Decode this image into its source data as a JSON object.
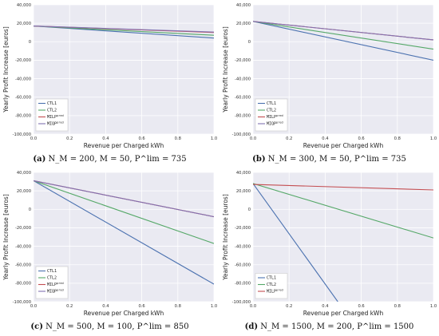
{
  "colors": {
    "plot_bg": "#eaeaf2",
    "grid": "#ffffff",
    "CTL1": "#4c72b0",
    "CTL2": "#55a868",
    "MILP": "#c44e52",
    "MIQP": "#8172b2"
  },
  "chart_data": [
    {
      "type": "line",
      "xlabel": "Revenue per Charged kWh",
      "ylabel": "Yearly Profit Increase [euros]",
      "xlim": [
        0.0,
        1.0
      ],
      "ylim": [
        -100000,
        40000
      ],
      "xticks": [
        "0.0",
        "0.2",
        "0.4",
        "0.6",
        "0.8",
        "1.0"
      ],
      "yticks": [
        "-100,000",
        "-80,000",
        "-60,000",
        "-40,000",
        "-20,000",
        "0",
        "20,000",
        "40,000"
      ],
      "grid": true,
      "legend_position": "lower-left",
      "caption": {
        "tag": "(a)",
        "text": "N_M = 200, M = 50, P^lim = 735"
      },
      "series": [
        {
          "name": "CTL1",
          "x": [
            0,
            1
          ],
          "y": [
            17000,
            4000
          ]
        },
        {
          "name": "CTL2",
          "x": [
            0,
            1
          ],
          "y": [
            17000,
            7000
          ]
        },
        {
          "name": "MILP^pred",
          "x": [
            0,
            1
          ],
          "y": [
            17000,
            10000
          ]
        },
        {
          "name": "MIQP^pred",
          "x": [
            0,
            1
          ],
          "y": [
            17000,
            10500
          ]
        }
      ]
    },
    {
      "type": "line",
      "xlabel": "Revenue per Charged kWh",
      "ylabel": "Yearly Profit Increase [euros]",
      "xlim": [
        0.0,
        1.0
      ],
      "ylim": [
        -100000,
        40000
      ],
      "xticks": [
        "0.0",
        "0.2",
        "0.4",
        "0.6",
        "0.8",
        "1.0"
      ],
      "yticks": [
        "-100,000",
        "-80,000",
        "-60,000",
        "-40,000",
        "-20,000",
        "0",
        "20,000",
        "40,000"
      ],
      "grid": true,
      "legend_position": "lower-left",
      "caption": {
        "tag": "(b)",
        "text": "N_M = 300, M = 50, P^lim = 735"
      },
      "series": [
        {
          "name": "CTL1",
          "x": [
            0,
            1
          ],
          "y": [
            22000,
            -20000
          ]
        },
        {
          "name": "CTL2",
          "x": [
            0,
            1
          ],
          "y": [
            22000,
            -8000
          ]
        },
        {
          "name": "MILP^pred",
          "x": [
            0,
            1
          ],
          "y": [
            22000,
            2000
          ]
        },
        {
          "name": "MIQP^pred",
          "x": [
            0,
            1
          ],
          "y": [
            22000,
            2000
          ]
        }
      ]
    },
    {
      "type": "line",
      "xlabel": "Revenue per Charged kWh",
      "ylabel": "Yearly Profit Increase [euros]",
      "xlim": [
        0.0,
        1.0
      ],
      "ylim": [
        -100000,
        40000
      ],
      "xticks": [
        "0.0",
        "0.2",
        "0.4",
        "0.6",
        "0.8",
        "1.0"
      ],
      "yticks": [
        "-100,000",
        "-80,000",
        "-60,000",
        "-40,000",
        "-20,000",
        "0",
        "20,000",
        "40,000"
      ],
      "grid": true,
      "legend_position": "lower-left",
      "caption": {
        "tag": "(c)",
        "text": "N_M = 500, M = 100, P^lim = 850"
      },
      "series": [
        {
          "name": "CTL1",
          "x": [
            0,
            1
          ],
          "y": [
            31000,
            -81000
          ]
        },
        {
          "name": "CTL2",
          "x": [
            0,
            1
          ],
          "y": [
            31000,
            -37000
          ]
        },
        {
          "name": "MILP^pred",
          "x": [
            0,
            1
          ],
          "y": [
            31000,
            -8000
          ]
        },
        {
          "name": "MIQP^pred",
          "x": [
            0,
            1
          ],
          "y": [
            31000,
            -8000
          ]
        }
      ]
    },
    {
      "type": "line",
      "xlabel": "Revenue per Charged kWh",
      "ylabel": "Yearly Profit Increase [euros]",
      "xlim": [
        0.0,
        1.0
      ],
      "ylim": [
        -100000,
        40000
      ],
      "xticks": [
        "0.0",
        "0.2",
        "0.4",
        "0.6",
        "0.8",
        "1.0"
      ],
      "yticks": [
        "-100,000",
        "-80,000",
        "-60,000",
        "-40,000",
        "-20,000",
        "0",
        "20,000",
        "40,000"
      ],
      "grid": true,
      "legend_position": "lower-left",
      "caption": {
        "tag": "(d)",
        "text": "N_M = 1500, M = 200, P^lim = 1500"
      },
      "series": [
        {
          "name": "CTL1",
          "x": [
            0,
            0.47
          ],
          "y": [
            28000,
            -100000
          ]
        },
        {
          "name": "CTL2",
          "x": [
            0,
            1
          ],
          "y": [
            28000,
            -31000
          ]
        },
        {
          "name": "MILP^pred",
          "x": [
            0,
            1
          ],
          "y": [
            27000,
            21000
          ]
        }
      ]
    }
  ]
}
